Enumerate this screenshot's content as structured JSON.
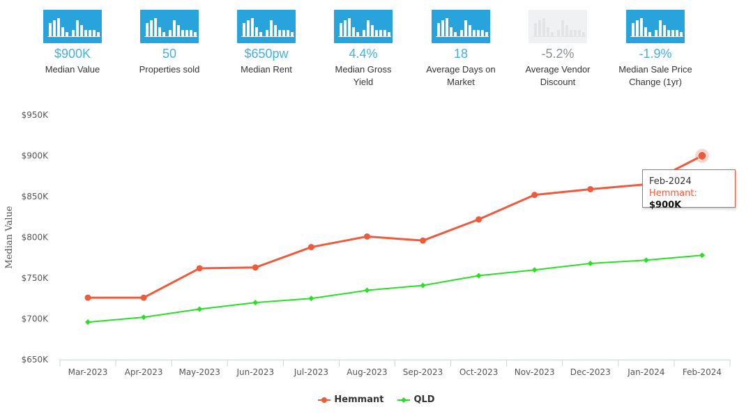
{
  "stats": [
    {
      "value": "$900K",
      "label": "Median Value",
      "icon": "bar-chart-icon"
    },
    {
      "value": "50",
      "label": "Properties sold",
      "icon": "bar-chart-icon"
    },
    {
      "value": "$650pw",
      "label": "Median Rent",
      "icon": "bar-chart-icon"
    },
    {
      "value": "4.4%",
      "label": "Median Gross Yield",
      "icon": "bar-chart-icon"
    },
    {
      "value": "18",
      "label": "Average Days on Market",
      "icon": "bar-chart-icon"
    },
    {
      "value": "-5.2%",
      "label": "Average Vendor Discount",
      "icon": "bar-chart-icon",
      "disabled": true
    },
    {
      "value": "-1.9%",
      "label": "Median Sale Price Change (1yr)",
      "icon": "bar-chart-icon"
    }
  ],
  "colors": {
    "accent": "#29a3dc",
    "hemmant": "#ef5a3c",
    "qld": "#27e024"
  },
  "chart_data": {
    "type": "line",
    "xlabel": "",
    "ylabel": "Median Value",
    "categories": [
      "Mar-2023",
      "Apr-2023",
      "May-2023",
      "Jun-2023",
      "Jul-2023",
      "Aug-2023",
      "Sep-2023",
      "Oct-2023",
      "Nov-2023",
      "Dec-2023",
      "Jan-2024",
      "Feb-2024"
    ],
    "ylim": [
      650000,
      950000
    ],
    "yticks": [
      650000,
      700000,
      750000,
      800000,
      850000,
      900000,
      950000
    ],
    "ytick_labels": [
      "$650K",
      "$700K",
      "$750K",
      "$800K",
      "$850K",
      "$900K",
      "$950K"
    ],
    "grid": false,
    "legend": "bottom-center",
    "series": [
      {
        "name": "Hemmant",
        "color": "#ef5a3c",
        "values": [
          726000,
          726000,
          762000,
          763000,
          788000,
          801000,
          796000,
          822000,
          852000,
          859000,
          865000,
          900000
        ]
      },
      {
        "name": "QLD",
        "color": "#27e024",
        "values": [
          696000,
          702000,
          712000,
          720000,
          725000,
          735000,
          741000,
          753000,
          760000,
          768000,
          772000,
          778000
        ]
      }
    ],
    "tooltip": {
      "date": "Feb-2024",
      "series": "Hemmant",
      "value": "$900K"
    }
  }
}
